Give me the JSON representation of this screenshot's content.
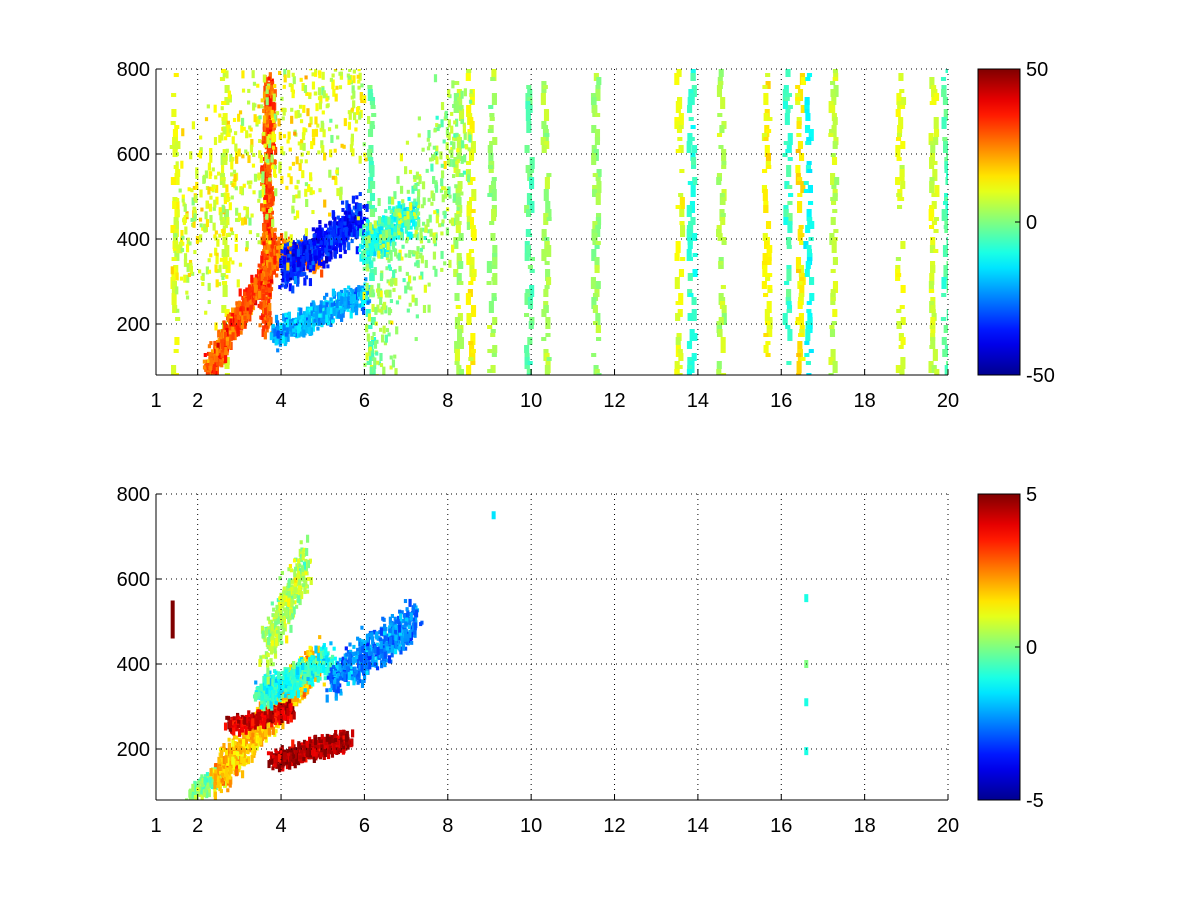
{
  "colormap_stops": [
    "#00008f",
    "#0000ff",
    "#00ffff",
    "#ffff00",
    "#ff0000",
    "#800000"
  ],
  "chart_data": [
    {
      "type": "heatmap",
      "title": "",
      "xlabel": "",
      "ylabel": "",
      "xlim": [
        1,
        20
      ],
      "ylim": [
        80,
        800
      ],
      "x_ticks": [
        "1",
        "2",
        "4",
        "6",
        "8",
        "10",
        "12",
        "14",
        "16",
        "18",
        "20"
      ],
      "x_tick_values": [
        1,
        2,
        4,
        6,
        8,
        10,
        12,
        14,
        16,
        18,
        20
      ],
      "y_ticks": [
        "200",
        "400",
        "600",
        "800"
      ],
      "y_tick_values": [
        200,
        400,
        600,
        800
      ],
      "grid": true,
      "colorbar": {
        "min": -50,
        "max": 50,
        "labels": [
          "50",
          "0",
          "-50"
        ],
        "label_values": [
          50,
          0,
          -50
        ]
      },
      "features": [
        {
          "x": [
            2.2,
            3.9
          ],
          "y": [
            95,
            380
          ],
          "value": 30,
          "spread": 28,
          "density": 0.9
        },
        {
          "x": [
            3.9,
            4.9
          ],
          "y": [
            380,
            360
          ],
          "value": 25,
          "spread": 25,
          "density": 0.8
        },
        {
          "x": [
            3.6,
            3.7
          ],
          "y": [
            200,
            780
          ],
          "value": 30,
          "spread": 20,
          "density": 0.7
        },
        {
          "x": [
            4.0,
            5.9
          ],
          "y": [
            330,
            460
          ],
          "value": -35,
          "spread": 40,
          "density": 0.85
        },
        {
          "x": [
            3.8,
            6.0
          ],
          "y": [
            180,
            280
          ],
          "value": -20,
          "spread": 25,
          "density": 0.7
        },
        {
          "x": [
            5.9,
            7.2
          ],
          "y": [
            390,
            470
          ],
          "value": -10,
          "spread": 40,
          "density": 0.7
        },
        {
          "x": [
            1.4,
            6.0
          ],
          "y": [
            420,
            790
          ],
          "value": 10,
          "spread": 200,
          "density": 0.35
        },
        {
          "x": [
            6.0,
            8.5
          ],
          "y": [
            200,
            700
          ],
          "value": 3,
          "spread": 200,
          "density": 0.3
        }
      ],
      "stripes": [
        {
          "x": 1.4,
          "value": 10
        },
        {
          "x": 2.6,
          "value": 8
        },
        {
          "x": 6.1,
          "value": -5
        },
        {
          "x": 8.2,
          "value": 5
        },
        {
          "x": 8.5,
          "value": 12
        },
        {
          "x": 9.0,
          "value": 3
        },
        {
          "x": 9.9,
          "value": -3
        },
        {
          "x": 10.3,
          "value": 4
        },
        {
          "x": 11.5,
          "value": 2
        },
        {
          "x": 13.5,
          "value": 10
        },
        {
          "x": 13.8,
          "value": -8
        },
        {
          "x": 14.5,
          "value": 5
        },
        {
          "x": 15.6,
          "value": 12
        },
        {
          "x": 16.1,
          "value": -6
        },
        {
          "x": 16.4,
          "value": 14
        },
        {
          "x": 16.6,
          "value": -12
        },
        {
          "x": 17.2,
          "value": 6
        },
        {
          "x": 18.8,
          "value": 10
        },
        {
          "x": 19.6,
          "value": 8
        },
        {
          "x": 19.9,
          "value": -4
        }
      ]
    },
    {
      "type": "heatmap",
      "title": "",
      "xlabel": "",
      "ylabel": "",
      "xlim": [
        1,
        20
      ],
      "ylim": [
        80,
        800
      ],
      "x_ticks": [
        "1",
        "2",
        "4",
        "6",
        "8",
        "10",
        "12",
        "14",
        "16",
        "18",
        "20"
      ],
      "x_tick_values": [
        1,
        2,
        4,
        6,
        8,
        10,
        12,
        14,
        16,
        18,
        20
      ],
      "y_ticks": [
        "200",
        "400",
        "600",
        "800"
      ],
      "y_tick_values": [
        200,
        400,
        600,
        800
      ],
      "grid": true,
      "colorbar": {
        "min": -5,
        "max": 5,
        "labels": [
          "5",
          "0",
          "-5"
        ],
        "label_values": [
          5,
          0,
          -5
        ]
      },
      "features": [
        {
          "x": [
            1.8,
            2.5
          ],
          "y": [
            95,
            150
          ],
          "value": 0,
          "spread": 15,
          "density": 0.8
        },
        {
          "x": [
            2.4,
            4.9
          ],
          "y": [
            140,
            420
          ],
          "value": 1.8,
          "spread": 40,
          "density": 0.85
        },
        {
          "x": [
            3.8,
            5.6
          ],
          "y": [
            180,
            230
          ],
          "value": 4.5,
          "spread": 18,
          "density": 0.85
        },
        {
          "x": [
            2.7,
            4.2
          ],
          "y": [
            260,
            300
          ],
          "value": 4.2,
          "spread": 15,
          "density": 0.6
        },
        {
          "x": [
            3.4,
            5.2
          ],
          "y": [
            330,
            420
          ],
          "value": -1,
          "spread": 30,
          "density": 0.7
        },
        {
          "x": [
            3.6,
            4.6
          ],
          "y": [
            450,
            650
          ],
          "value": 0.5,
          "spread": 50,
          "density": 0.6
        },
        {
          "x": [
            5.2,
            7.2
          ],
          "y": [
            370,
            510
          ],
          "value": -2.5,
          "spread": 40,
          "density": 0.7
        }
      ],
      "points": [
        {
          "x": 1.4,
          "y": 540,
          "value": 5
        },
        {
          "x": 9.1,
          "y": 750,
          "value": -1.5
        },
        {
          "x": 16.6,
          "y": 555,
          "value": -1
        },
        {
          "x": 16.6,
          "y": 400,
          "value": 0
        },
        {
          "x": 16.6,
          "y": 310,
          "value": -1
        },
        {
          "x": 16.6,
          "y": 195,
          "value": -1
        }
      ]
    }
  ]
}
